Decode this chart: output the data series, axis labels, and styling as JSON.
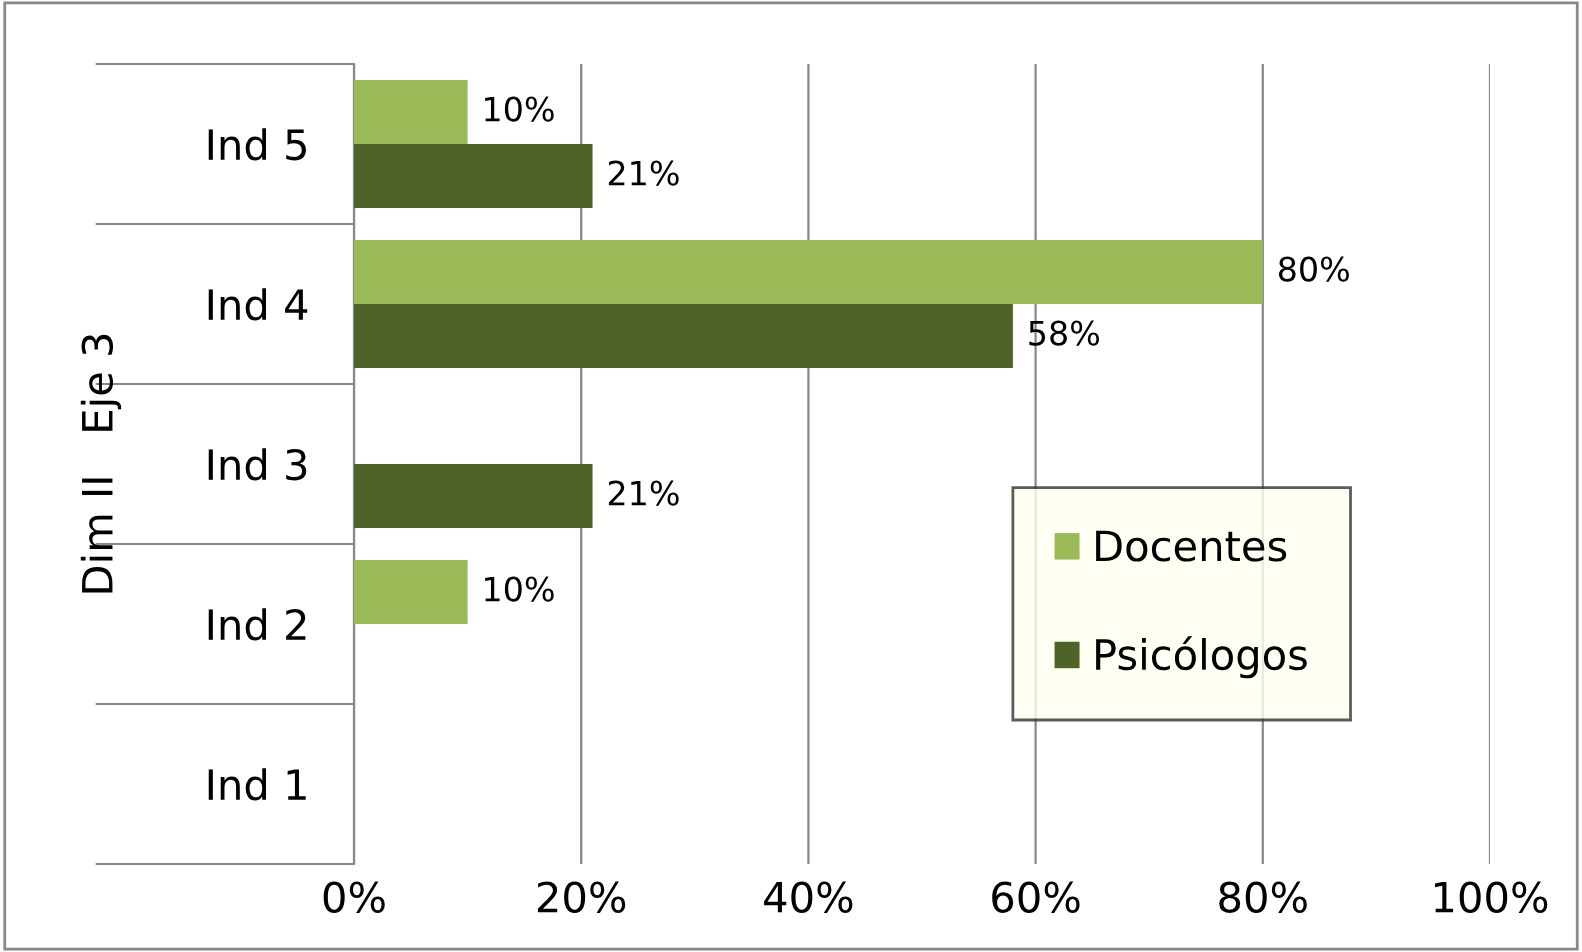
{
  "chart_data": {
    "type": "bar",
    "orientation": "horizontal",
    "ylabel": "Dim II   Eje 3",
    "categories": [
      "Ind 5",
      "Ind 4",
      "Ind 3",
      "Ind 2",
      "Ind 1"
    ],
    "series": [
      {
        "name": "Docentes",
        "color": "#9bbb59",
        "values": [
          10,
          80,
          null,
          10,
          null
        ],
        "value_labels": [
          "10%",
          "80%",
          null,
          "10%",
          null
        ]
      },
      {
        "name": "Psicólogos",
        "color": "#4f6228",
        "values": [
          21,
          58,
          21,
          null,
          null
        ],
        "value_labels": [
          "21%",
          "58%",
          "21%",
          null,
          null
        ]
      }
    ],
    "xlim": [
      0,
      100
    ],
    "xticks": [
      {
        "value": 0,
        "label": "0%"
      },
      {
        "value": 20,
        "label": "20%"
      },
      {
        "value": 40,
        "label": "40%"
      },
      {
        "value": 60,
        "label": "60%"
      },
      {
        "value": 80,
        "label": "80%"
      },
      {
        "value": 100,
        "label": "100%"
      }
    ],
    "grid": "x",
    "legend": "bottom right"
  }
}
